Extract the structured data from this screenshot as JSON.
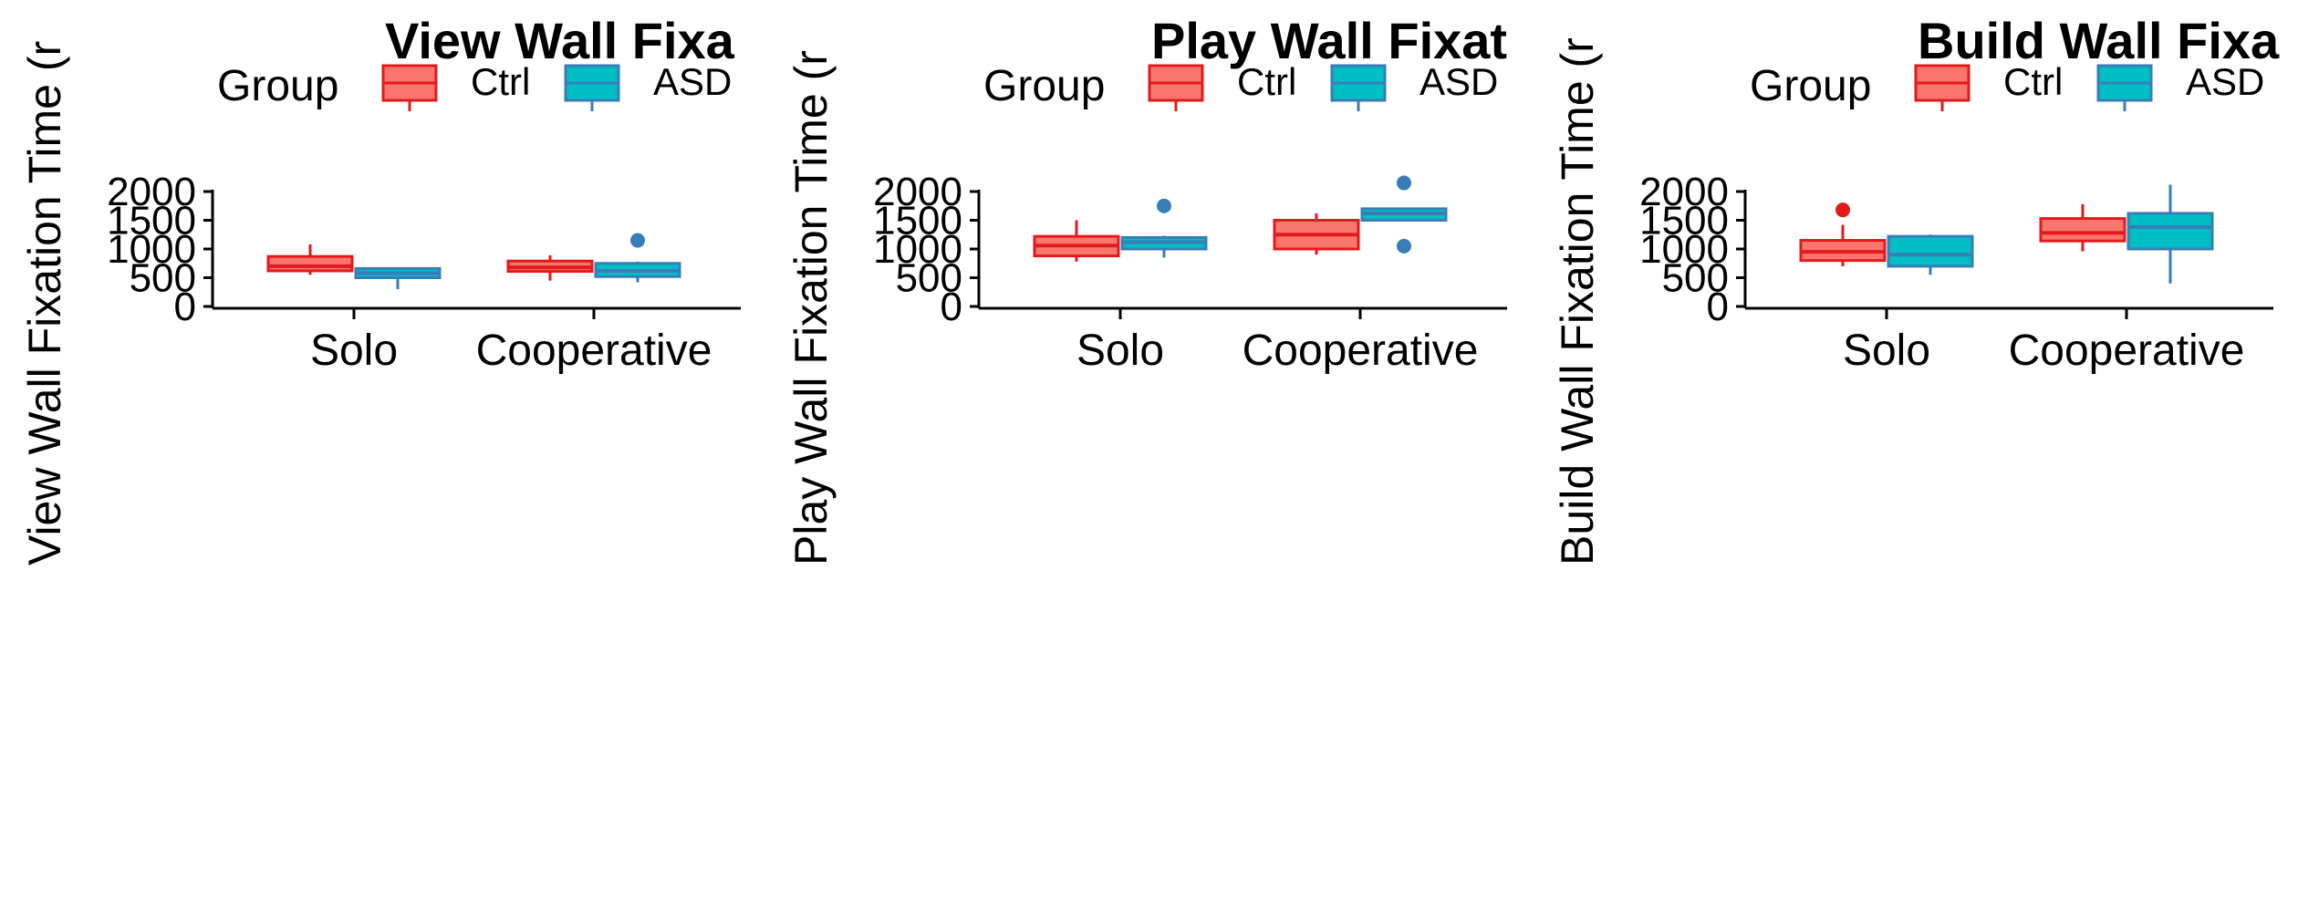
{
  "chart_data": [
    {
      "type": "boxplot",
      "title": "View Wall Fixa",
      "ylabel": "View Wall Fixation Time (r",
      "ylim": [
        0,
        2000
      ],
      "yticks": [
        0,
        500,
        1000,
        1500,
        2000
      ],
      "categories": [
        "Solo",
        "Cooperative"
      ],
      "legend": {
        "title": "Group",
        "placement": "top",
        "labels": [
          "Ctrl",
          "ASD"
        ]
      },
      "series": [
        {
          "name": "Ctrl",
          "color": "#e31a1c",
          "fill": "#f8766d",
          "boxes": [
            {
              "category": "Solo",
              "min": 550,
              "q1": 620,
              "median": 700,
              "q3": 870,
              "max": 1080,
              "outliers": []
            },
            {
              "category": "Cooperative",
              "min": 450,
              "q1": 610,
              "median": 680,
              "q3": 790,
              "max": 890,
              "outliers": []
            }
          ]
        },
        {
          "name": "ASD",
          "color": "#377eb8",
          "fill": "#00bfc4",
          "boxes": [
            {
              "category": "Solo",
              "min": 300,
              "q1": 500,
              "median": 580,
              "q3": 660,
              "max": 680,
              "outliers": []
            },
            {
              "category": "Cooperative",
              "min": 420,
              "q1": 520,
              "median": 620,
              "q3": 750,
              "max": 780,
              "outliers": [
                1150
              ]
            }
          ]
        }
      ]
    },
    {
      "type": "boxplot",
      "title": "Play Wall Fixat",
      "ylabel": "Play Wall Fixation Time (r",
      "ylim": [
        0,
        2000
      ],
      "yticks": [
        0,
        500,
        1000,
        1500,
        2000
      ],
      "categories": [
        "Solo",
        "Cooperative"
      ],
      "legend": {
        "title": "Group",
        "placement": "top",
        "labels": [
          "Ctrl",
          "ASD"
        ]
      },
      "series": [
        {
          "name": "Ctrl",
          "color": "#e31a1c",
          "fill": "#f8766d",
          "boxes": [
            {
              "category": "Solo",
              "min": 780,
              "q1": 880,
              "median": 1060,
              "q3": 1220,
              "max": 1500,
              "outliers": []
            },
            {
              "category": "Cooperative",
              "min": 900,
              "q1": 1000,
              "median": 1250,
              "q3": 1500,
              "max": 1620,
              "outliers": []
            }
          ]
        },
        {
          "name": "ASD",
          "color": "#377eb8",
          "fill": "#00bfc4",
          "boxes": [
            {
              "category": "Solo",
              "min": 850,
              "q1": 1000,
              "median": 1120,
              "q3": 1200,
              "max": 1230,
              "outliers": [
                1750
              ]
            },
            {
              "category": "Cooperative",
              "min": 1480,
              "q1": 1500,
              "median": 1620,
              "q3": 1700,
              "max": 1720,
              "outliers": [
                2150,
                1050
              ]
            }
          ]
        }
      ]
    },
    {
      "type": "boxplot",
      "title": "Build Wall Fixa",
      "ylabel": "Build Wall Fixation Time (r",
      "ylim": [
        0,
        2000
      ],
      "yticks": [
        0,
        500,
        1000,
        1500,
        2000
      ],
      "categories": [
        "Solo",
        "Cooperative"
      ],
      "legend": {
        "title": "Group",
        "placement": "top",
        "labels": [
          "Ctrl",
          "ASD"
        ]
      },
      "series": [
        {
          "name": "Ctrl",
          "color": "#e31a1c",
          "fill": "#f8766d",
          "boxes": [
            {
              "category": "Solo",
              "min": 700,
              "q1": 800,
              "median": 950,
              "q3": 1150,
              "max": 1420,
              "outliers": [
                1680
              ]
            },
            {
              "category": "Cooperative",
              "min": 960,
              "q1": 1140,
              "median": 1280,
              "q3": 1530,
              "max": 1780,
              "outliers": []
            }
          ]
        },
        {
          "name": "ASD",
          "color": "#377eb8",
          "fill": "#00bfc4",
          "boxes": [
            {
              "category": "Solo",
              "min": 550,
              "q1": 700,
              "median": 900,
              "q3": 1220,
              "max": 1250,
              "outliers": []
            },
            {
              "category": "Cooperative",
              "min": 400,
              "q1": 1000,
              "median": 1380,
              "q3": 1620,
              "max": 2120,
              "outliers": []
            }
          ]
        }
      ]
    }
  ]
}
